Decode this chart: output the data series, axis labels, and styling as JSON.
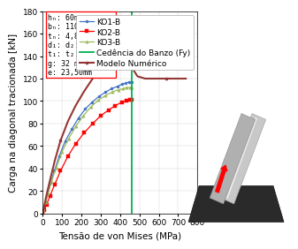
{
  "xlabel": "Tensão de von Mises (MPa)",
  "ylabel": "Carga na diagonal tracionada [kN]",
  "xlim": [
    0,
    800
  ],
  "ylim": [
    0,
    180
  ],
  "xticks": [
    0,
    100,
    200,
    300,
    400,
    500,
    600,
    700,
    800
  ],
  "yticks": [
    0,
    20,
    40,
    60,
    80,
    100,
    120,
    140,
    160,
    180
  ],
  "cedencia_x": 460,
  "annotation_lines": [
    "hₙ: 60mm",
    "bₙ: 110mm",
    "tₙ: 4,8mm",
    "d₁: d₂: 48,3 mm",
    "t₁: t₂: 3,7mm",
    "g: 32 mm",
    "e: 23,50mm"
  ],
  "KO1_color": "#4472C4",
  "KO2_color": "#FF0000",
  "KO3_color": "#9BBB59",
  "cedencia_color": "#00B050",
  "numerico_color": "#943634",
  "legend_fontsize": 6.5,
  "axis_fontsize": 7.5,
  "tick_fontsize": 6.5,
  "annot_fontsize": 6.0,
  "ko1_x": [
    0,
    5,
    15,
    25,
    40,
    60,
    85,
    115,
    150,
    185,
    220,
    255,
    290,
    325,
    355,
    385,
    410,
    430,
    445,
    455,
    462
  ],
  "ko1_y": [
    0,
    4,
    10,
    17,
    27,
    38,
    51,
    64,
    75,
    85,
    93,
    99,
    104,
    108,
    111,
    113,
    115,
    116,
    117,
    117,
    117
  ],
  "ko2_x": [
    0,
    8,
    20,
    38,
    62,
    92,
    130,
    170,
    215,
    258,
    300,
    340,
    375,
    408,
    432,
    450,
    458
  ],
  "ko2_y": [
    0,
    3,
    8,
    16,
    26,
    38,
    51,
    62,
    72,
    80,
    87,
    92,
    96,
    99,
    100,
    101,
    101
  ],
  "ko3_x": [
    0,
    5,
    15,
    28,
    46,
    70,
    100,
    135,
    172,
    210,
    250,
    288,
    325,
    358,
    390,
    415,
    435,
    450,
    458
  ],
  "ko3_y": [
    0,
    4,
    10,
    18,
    29,
    41,
    55,
    67,
    78,
    87,
    95,
    101,
    105,
    108,
    110,
    111,
    112,
    112,
    112
  ],
  "num_x": [
    0,
    8,
    20,
    38,
    62,
    92,
    130,
    170,
    215,
    258,
    298,
    333,
    362,
    386,
    405,
    420,
    432,
    440,
    446,
    450,
    453,
    455,
    457,
    458,
    458,
    457,
    455,
    452,
    448,
    443,
    437,
    430,
    422,
    413,
    404,
    395,
    385,
    375,
    365,
    355,
    345,
    340,
    338,
    340,
    345,
    355,
    365,
    380,
    400,
    420,
    440,
    460,
    490,
    530,
    580,
    640,
    700,
    740
  ],
  "num_y": [
    0,
    7,
    17,
    30,
    47,
    65,
    82,
    96,
    109,
    120,
    129,
    136,
    142,
    147,
    151,
    154,
    157,
    159,
    161,
    162,
    163,
    164,
    164,
    164,
    165,
    165,
    166,
    166,
    167,
    167,
    167,
    167,
    167,
    167,
    167,
    166,
    166,
    165,
    164,
    163,
    162,
    161,
    160,
    160,
    160,
    161,
    161,
    161,
    158,
    152,
    143,
    130,
    122,
    120,
    120,
    120,
    120,
    120
  ]
}
